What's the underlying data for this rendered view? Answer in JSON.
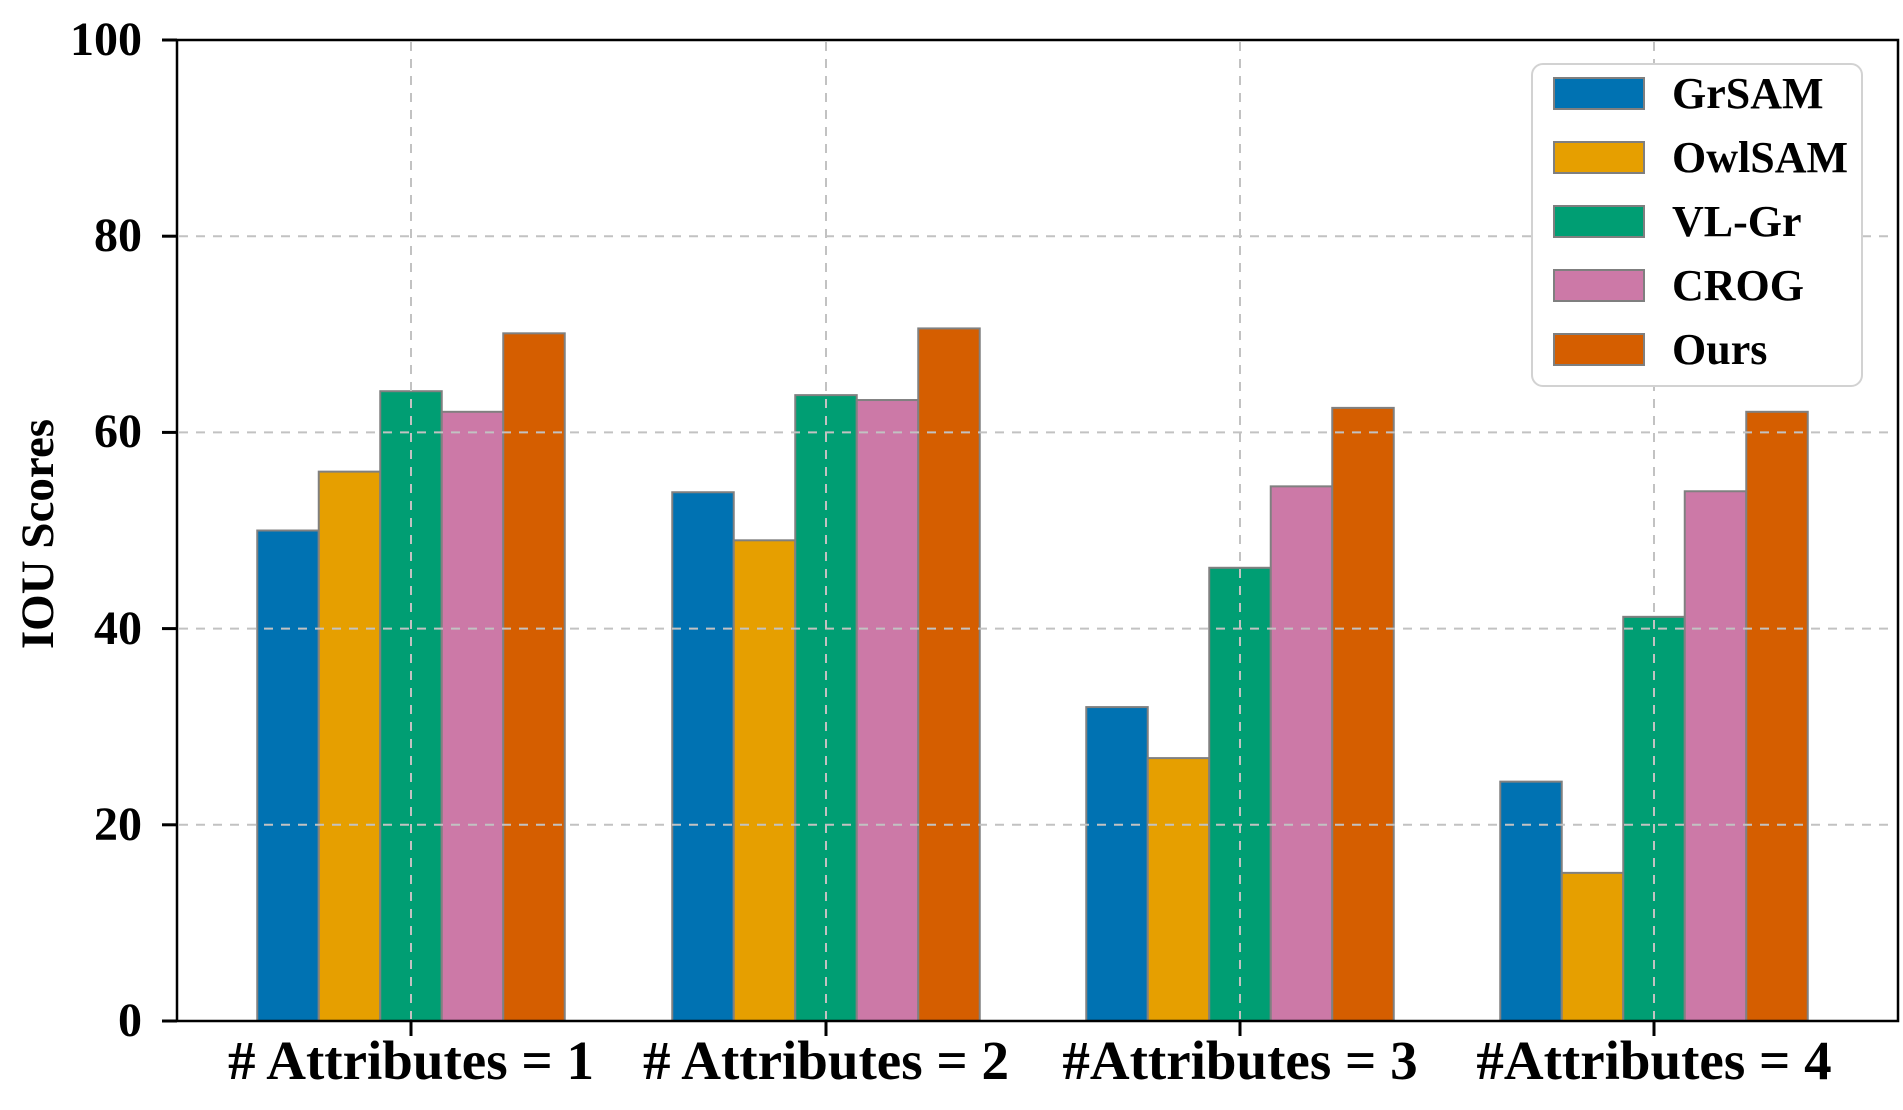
{
  "chart_data": {
    "type": "bar",
    "title": "",
    "xlabel": "",
    "ylabel": "IOU Scores",
    "categories": [
      "# Attributes = 1",
      "# Attributes = 2",
      "#Attributes = 3",
      "#Attributes = 4"
    ],
    "series": [
      {
        "name": "GrSAM",
        "color": "#0072B2",
        "values": [
          50.0,
          53.9,
          32.0,
          24.4
        ]
      },
      {
        "name": "OwlSAM",
        "color": "#E69F00",
        "values": [
          56.0,
          49.0,
          26.8,
          15.1
        ]
      },
      {
        "name": "VL-Gr",
        "color": "#009E73",
        "values": [
          64.2,
          63.8,
          46.2,
          41.2
        ]
      },
      {
        "name": "CROG",
        "color": "#CC79A7",
        "values": [
          62.1,
          63.3,
          54.5,
          54.0
        ]
      },
      {
        "name": "Ours",
        "color": "#D55E00",
        "values": [
          70.1,
          70.6,
          62.5,
          62.1
        ]
      }
    ],
    "ylim": [
      0,
      100
    ],
    "yticks": [
      0,
      20,
      40,
      60,
      80,
      100
    ],
    "grid": "dashed light-gray gridlines, horizontal at y ticks and vertical at group centers, drawn above bars",
    "legend_position": "upper right",
    "bar_edge_color": "#808080",
    "spine_color": "#000000",
    "grid_color": "#c2c2c2"
  }
}
